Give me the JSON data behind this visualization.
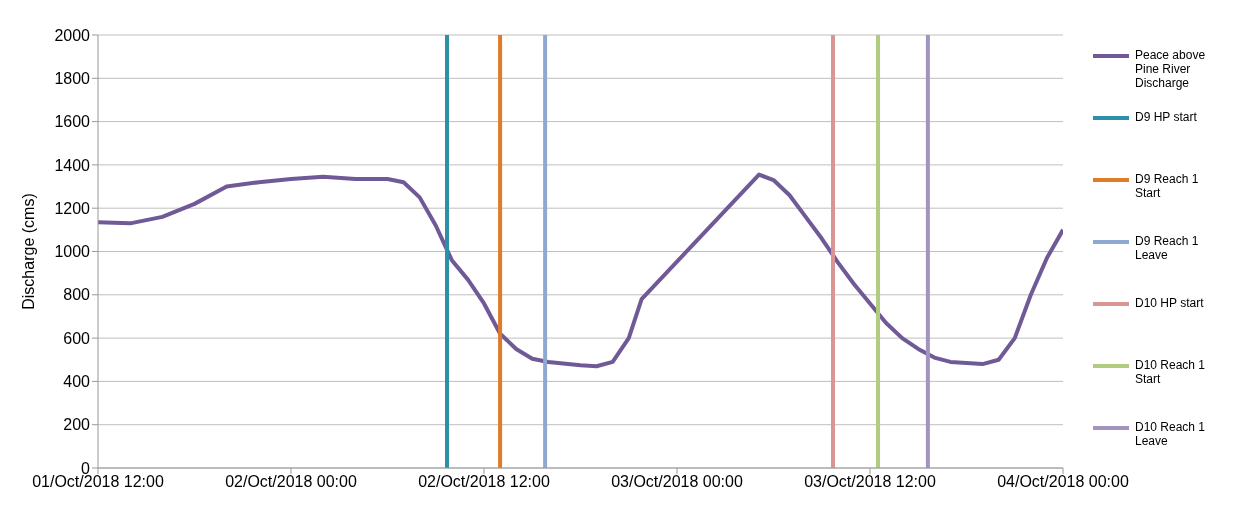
{
  "chart_data": {
    "type": "line",
    "ylabel": "Discharge (cms)",
    "xlim": [
      "2018-10-01T12:00",
      "2018-10-04T00:00"
    ],
    "xticks": [
      {
        "value": "2018-10-01T12:00",
        "label": "01/Oct/2018 12:00"
      },
      {
        "value": "2018-10-02T00:00",
        "label": "02/Oct/2018 00:00"
      },
      {
        "value": "2018-10-02T12:00",
        "label": "02/Oct/2018 12:00"
      },
      {
        "value": "2018-10-03T00:00",
        "label": "03/Oct/2018 00:00"
      },
      {
        "value": "2018-10-03T12:00",
        "label": "03/Oct/2018 12:00"
      },
      {
        "value": "2018-10-04T00:00",
        "label": "04/Oct/2018 00:00"
      }
    ],
    "ylim": [
      0,
      2000
    ],
    "yticks": [
      0,
      200,
      400,
      600,
      800,
      1000,
      1200,
      1400,
      1600,
      1800,
      2000
    ],
    "grid": "y",
    "legend": "right",
    "marker": "none",
    "line_style": "solid",
    "series": [
      {
        "name": "Peace above Pine River Discharge",
        "color": "#6f5a97",
        "x": [
          "2018-10-01T12:00",
          "2018-10-01T14:00",
          "2018-10-01T16:00",
          "2018-10-01T18:00",
          "2018-10-01T20:00",
          "2018-10-01T22:00",
          "2018-10-02T00:00",
          "2018-10-02T02:00",
          "2018-10-02T04:00",
          "2018-10-02T06:00",
          "2018-10-02T07:00",
          "2018-10-02T08:00",
          "2018-10-02T09:00",
          "2018-10-02T10:00",
          "2018-10-02T11:00",
          "2018-10-02T12:00",
          "2018-10-02T13:00",
          "2018-10-02T14:00",
          "2018-10-02T15:00",
          "2018-10-02T16:00",
          "2018-10-02T18:00",
          "2018-10-02T19:00",
          "2018-10-02T20:00",
          "2018-10-02T21:00",
          "2018-10-02T21:48",
          "2018-10-03T05:06",
          "2018-10-03T06:00",
          "2018-10-03T07:00",
          "2018-10-03T08:00",
          "2018-10-03T09:00",
          "2018-10-03T10:00",
          "2018-10-03T11:00",
          "2018-10-03T12:00",
          "2018-10-03T13:00",
          "2018-10-03T14:00",
          "2018-10-03T15:00",
          "2018-10-03T16:00",
          "2018-10-03T17:00",
          "2018-10-03T18:00",
          "2018-10-03T19:00",
          "2018-10-03T20:00",
          "2018-10-03T21:00",
          "2018-10-03T22:00",
          "2018-10-03T23:00",
          "2018-10-04T00:00"
        ],
        "values": [
          1135,
          1130,
          1160,
          1220,
          1300,
          1320,
          1335,
          1345,
          1335,
          1335,
          1320,
          1250,
          1120,
          960,
          870,
          760,
          620,
          550,
          505,
          490,
          475,
          470,
          490,
          600,
          780,
          1355,
          1330,
          1260,
          1160,
          1060,
          950,
          850,
          760,
          670,
          600,
          550,
          510,
          490,
          485,
          480,
          500,
          600,
          800,
          970,
          1100
        ]
      },
      {
        "name": "D9 HP start",
        "color": "#2e8fa8",
        "x": [
          "2018-10-02T09:42",
          "2018-10-02T09:42"
        ],
        "values": [
          0,
          2000
        ]
      },
      {
        "name": "D9 Reach 1 Start",
        "color": "#e07b2a",
        "x": [
          "2018-10-02T13:00",
          "2018-10-02T13:00"
        ],
        "values": [
          0,
          2000
        ]
      },
      {
        "name": "D9 Reach 1 Leave",
        "color": "#8fa8d0",
        "x": [
          "2018-10-02T15:48",
          "2018-10-02T15:48"
        ],
        "values": [
          0,
          2000
        ]
      },
      {
        "name": "D10 HP start",
        "color": "#d99494",
        "x": [
          "2018-10-03T09:42",
          "2018-10-03T09:42"
        ],
        "values": [
          0,
          2000
        ]
      },
      {
        "name": "D10 Reach 1 Start",
        "color": "#b0cc7e",
        "x": [
          "2018-10-03T12:30",
          "2018-10-03T12:30"
        ],
        "values": [
          0,
          2000
        ]
      },
      {
        "name": "D10 Reach 1 Leave",
        "color": "#a393bf",
        "x": [
          "2018-10-03T15:36",
          "2018-10-03T15:36"
        ],
        "values": [
          0,
          2000
        ]
      }
    ]
  }
}
